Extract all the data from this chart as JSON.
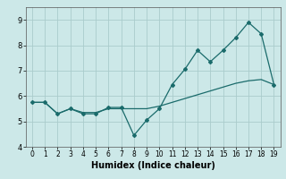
{
  "xlabel": "Humidex (Indice chaleur)",
  "ylabel": "",
  "bg_color": "#cce8e8",
  "line_color": "#1a6b6b",
  "x_jagged": [
    0,
    1,
    2,
    3,
    4,
    5,
    6,
    7,
    8,
    9,
    10,
    11,
    12,
    13,
    14,
    15,
    16,
    17,
    18,
    19
  ],
  "y_jagged": [
    5.75,
    5.75,
    5.3,
    5.5,
    5.3,
    5.3,
    5.55,
    5.55,
    4.45,
    5.05,
    5.5,
    6.45,
    7.05,
    7.8,
    7.35,
    7.8,
    8.3,
    8.9,
    8.45,
    6.45
  ],
  "x_smooth": [
    0,
    1,
    2,
    3,
    4,
    5,
    6,
    7,
    8,
    9,
    10,
    11,
    12,
    13,
    14,
    15,
    16,
    17,
    18,
    19
  ],
  "y_smooth": [
    5.75,
    5.75,
    5.3,
    5.5,
    5.35,
    5.35,
    5.5,
    5.5,
    5.5,
    5.5,
    5.6,
    5.75,
    5.9,
    6.05,
    6.2,
    6.35,
    6.5,
    6.6,
    6.65,
    6.45
  ],
  "ylim": [
    4.0,
    9.5
  ],
  "xlim": [
    -0.5,
    19.5
  ],
  "yticks": [
    4,
    5,
    6,
    7,
    8,
    9
  ],
  "xticks": [
    0,
    1,
    2,
    3,
    4,
    5,
    6,
    7,
    8,
    9,
    10,
    11,
    12,
    13,
    14,
    15,
    16,
    17,
    18,
    19
  ],
  "grid_color": "#aacccc",
  "marker": "D",
  "markersize": 2.0,
  "linewidth": 0.9
}
